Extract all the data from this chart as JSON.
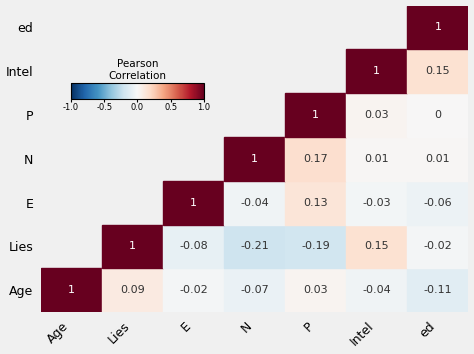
{
  "labels": [
    "Age",
    "Lies",
    "E",
    "N",
    "P",
    "Intel",
    "ed"
  ],
  "matrix": [
    [
      1,
      0.09,
      -0.02,
      -0.07,
      0.03,
      -0.04,
      -0.11
    ],
    [
      0.09,
      1,
      -0.08,
      -0.21,
      -0.19,
      0.15,
      -0.02
    ],
    [
      -0.02,
      -0.08,
      1,
      -0.04,
      0.13,
      -0.03,
      -0.06
    ],
    [
      -0.07,
      -0.21,
      -0.04,
      1,
      0.17,
      0.01,
      0.01
    ],
    [
      0.03,
      -0.19,
      0.13,
      0.17,
      1,
      0.03,
      0
    ],
    [
      -0.04,
      0.15,
      -0.03,
      0.01,
      0.03,
      1,
      0.15
    ],
    [
      -0.11,
      -0.02,
      -0.06,
      0.01,
      0,
      0.15,
      1
    ]
  ],
  "colorbar_title": "Pearson\nCorrelation",
  "cmap": "RdBu_r",
  "vmin": -1.0,
  "vmax": 1.0,
  "background_color": "#f0f0f0",
  "annotation_fontsize": 8,
  "label_fontsize": 9,
  "diag_text_color": "white",
  "off_diag_text_color": "#333333"
}
